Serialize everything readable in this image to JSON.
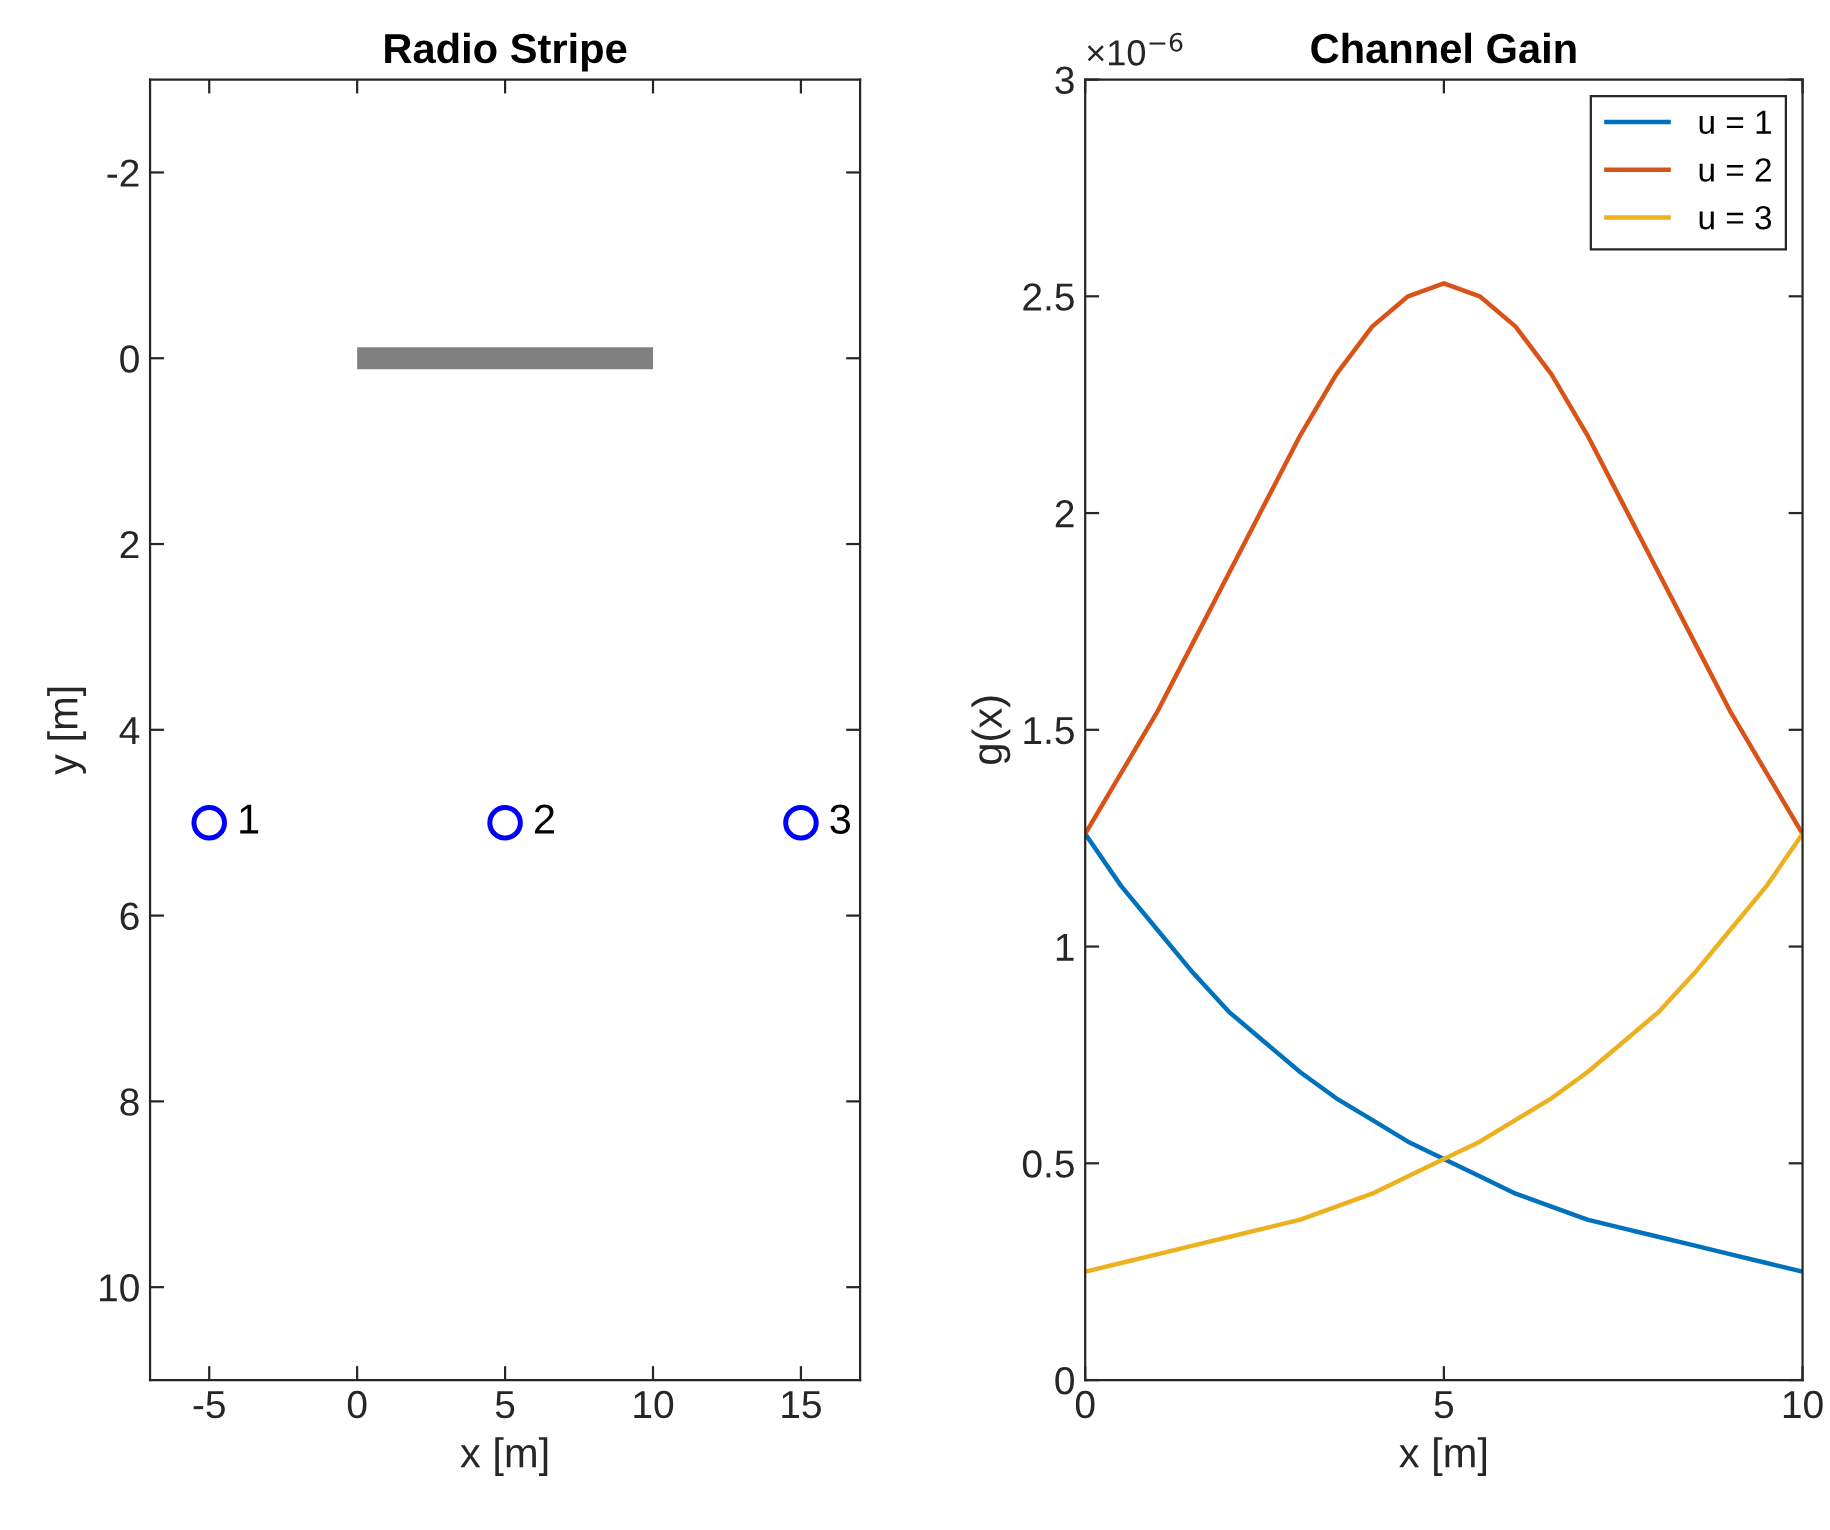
{
  "chart_data": [
    {
      "type": "scatter",
      "title": "Radio Stripe",
      "xlabel": "x [m]",
      "ylabel": "y [m]",
      "xlim": [
        -7,
        17
      ],
      "xticks": [
        -5,
        0,
        5,
        10,
        15
      ],
      "ylim": [
        11,
        -3
      ],
      "yticks": [
        -2,
        0,
        2,
        4,
        6,
        8,
        10
      ],
      "series": [
        {
          "type": "line",
          "color": "#808080",
          "x": [
            0,
            10
          ],
          "values": [
            0,
            0
          ]
        },
        {
          "type": "scatter",
          "color": "#0000ff",
          "marker": "circle",
          "x": [
            -5,
            5,
            15
          ],
          "values": [
            5,
            5,
            5
          ]
        }
      ],
      "annotations": [
        {
          "text": "1",
          "x": -5,
          "y": 5
        },
        {
          "text": "2",
          "x": 5,
          "y": 5
        },
        {
          "text": "3",
          "x": 15,
          "y": 5
        }
      ]
    },
    {
      "type": "line",
      "title": "Channel Gain",
      "xlabel": "x [m]",
      "ylabel": "g(x)",
      "legend": "top right",
      "xlim": [
        0,
        10
      ],
      "xticks": [
        0,
        5,
        10
      ],
      "ylim": [
        0,
        3
      ],
      "yticks": [
        0,
        0.5,
        1,
        1.5,
        2,
        2.5,
        3
      ],
      "x": [
        0,
        0.5,
        1,
        1.5,
        2,
        2.5,
        3,
        3.5,
        4,
        4.5,
        5,
        5.5,
        6,
        6.5,
        7,
        7.5,
        8,
        8.5,
        9,
        9.5,
        10
      ],
      "series": [
        {
          "name": "u = 1",
          "color": "#0072bd",
          "values": [
            1.26,
            1.14,
            1.04,
            0.94,
            0.85,
            0.78,
            0.71,
            0.65,
            0.6,
            0.55,
            0.51,
            0.47,
            0.43,
            0.4,
            0.37,
            0.35,
            0.33,
            0.31,
            0.29,
            0.27,
            0.25
          ]
        },
        {
          "name": "u = 2",
          "color": "#d95319",
          "values": [
            1.26,
            1.4,
            1.54,
            1.7,
            1.86,
            2.02,
            2.18,
            2.32,
            2.43,
            2.5,
            2.53,
            2.5,
            2.43,
            2.32,
            2.18,
            2.02,
            1.86,
            1.7,
            1.54,
            1.4,
            1.26
          ]
        },
        {
          "name": "u = 3",
          "color": "#edb120",
          "values": [
            0.25,
            0.27,
            0.29,
            0.31,
            0.33,
            0.35,
            0.37,
            0.4,
            0.43,
            0.47,
            0.51,
            0.55,
            0.6,
            0.65,
            0.71,
            0.78,
            0.85,
            0.94,
            1.04,
            1.14,
            1.26
          ]
        }
      ],
      "annotations": [
        "×10$^{−6}$"
      ]
    }
  ]
}
